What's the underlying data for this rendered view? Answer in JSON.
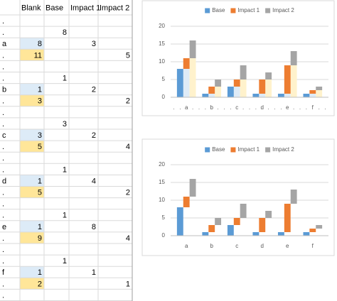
{
  "table": {
    "header": [
      null,
      "Blank",
      "Base",
      "Impact 1",
      "Impact 2"
    ],
    "rows": [
      [
        ".",
        null,
        null,
        null,
        null
      ],
      [
        ".",
        null,
        8,
        null,
        null
      ],
      [
        "a",
        8,
        null,
        3,
        null
      ],
      [
        ".",
        11,
        null,
        null,
        5
      ],
      [
        ".",
        null,
        null,
        null,
        null
      ],
      [
        ".",
        null,
        1,
        null,
        null
      ],
      [
        "b",
        1,
        null,
        2,
        null
      ],
      [
        ".",
        3,
        null,
        null,
        2
      ],
      [
        ".",
        null,
        null,
        null,
        null
      ],
      [
        ".",
        null,
        3,
        null,
        null
      ],
      [
        "c",
        3,
        null,
        2,
        null
      ],
      [
        ".",
        5,
        null,
        null,
        4
      ],
      [
        ".",
        null,
        null,
        null,
        null
      ],
      [
        ".",
        null,
        1,
        null,
        null
      ],
      [
        "d",
        1,
        null,
        4,
        null
      ],
      [
        ".",
        5,
        null,
        null,
        2
      ],
      [
        ".",
        null,
        null,
        null,
        null
      ],
      [
        ".",
        null,
        1,
        null,
        null
      ],
      [
        "e",
        1,
        null,
        8,
        null
      ],
      [
        ".",
        9,
        null,
        null,
        4
      ],
      [
        ".",
        null,
        null,
        null,
        null
      ],
      [
        ".",
        null,
        1,
        null,
        null
      ],
      [
        "f",
        1,
        null,
        1,
        null
      ],
      [
        ".",
        2,
        null,
        null,
        1
      ],
      [
        ".",
        null,
        null,
        null,
        null
      ]
    ]
  },
  "chart_data": [
    {
      "type": "stacked-bar",
      "categories": [
        ".",
        ".",
        "a",
        ".",
        ".",
        ".",
        "b",
        ".",
        ".",
        ".",
        "c",
        ".",
        ".",
        ".",
        "d",
        ".",
        ".",
        ".",
        "e",
        ".",
        ".",
        ".",
        "f",
        ".",
        "."
      ],
      "ylim": [
        0,
        20
      ],
      "yticks": [
        0,
        5,
        10,
        15,
        20
      ],
      "grid": true,
      "legend": "top",
      "series": [
        {
          "name": "Blank",
          "in_legend": false,
          "colors": [
            null,
            null,
            "#deebf7",
            "#fff2cc",
            null,
            null,
            "#deebf7",
            "#fff2cc",
            null,
            null,
            "#deebf7",
            "#fff2cc",
            null,
            null,
            "#deebf7",
            "#fff2cc",
            null,
            null,
            "#deebf7",
            "#fff2cc",
            null,
            null,
            "#deebf7",
            "#fff2cc",
            null
          ],
          "values": [
            null,
            null,
            8,
            11,
            null,
            null,
            1,
            3,
            null,
            null,
            3,
            5,
            null,
            null,
            1,
            5,
            null,
            null,
            1,
            9,
            null,
            null,
            1,
            2,
            null
          ]
        },
        {
          "name": "Base",
          "color": "#5b9bd5",
          "values": [
            null,
            8,
            null,
            null,
            null,
            1,
            null,
            null,
            null,
            3,
            null,
            null,
            null,
            1,
            null,
            null,
            null,
            1,
            null,
            null,
            null,
            1,
            null,
            null,
            null
          ]
        },
        {
          "name": "Impact 1",
          "color": "#ed7d31",
          "values": [
            null,
            null,
            3,
            null,
            null,
            null,
            2,
            null,
            null,
            null,
            2,
            null,
            null,
            null,
            4,
            null,
            null,
            null,
            8,
            null,
            null,
            null,
            1,
            null,
            null
          ]
        },
        {
          "name": "Impact 2",
          "color": "#a5a5a5",
          "values": [
            null,
            null,
            null,
            5,
            null,
            null,
            null,
            2,
            null,
            null,
            null,
            4,
            null,
            null,
            null,
            2,
            null,
            null,
            null,
            4,
            null,
            null,
            null,
            1,
            null
          ]
        }
      ]
    },
    {
      "type": "stacked-bar",
      "categories": [
        null,
        null,
        "a",
        null,
        null,
        null,
        "b",
        null,
        null,
        null,
        "c",
        null,
        null,
        null,
        "d",
        null,
        null,
        null,
        "e",
        null,
        null,
        null,
        "f",
        null,
        null
      ],
      "ylim": [
        0,
        20
      ],
      "yticks": [
        0,
        5,
        10,
        15,
        20
      ],
      "grid": true,
      "legend": "top",
      "series": [
        {
          "name": "Blank",
          "in_legend": false,
          "color": null,
          "values": [
            null,
            null,
            8,
            11,
            null,
            null,
            1,
            3,
            null,
            null,
            3,
            5,
            null,
            null,
            1,
            5,
            null,
            null,
            1,
            9,
            null,
            null,
            1,
            2,
            null
          ]
        },
        {
          "name": "Base",
          "color": "#5b9bd5",
          "values": [
            null,
            8,
            null,
            null,
            null,
            1,
            null,
            null,
            null,
            3,
            null,
            null,
            null,
            1,
            null,
            null,
            null,
            1,
            null,
            null,
            null,
            1,
            null,
            null,
            null
          ]
        },
        {
          "name": "Impact 1",
          "color": "#ed7d31",
          "values": [
            null,
            null,
            3,
            null,
            null,
            null,
            2,
            null,
            null,
            null,
            2,
            null,
            null,
            null,
            4,
            null,
            null,
            null,
            8,
            null,
            null,
            null,
            1,
            null,
            null
          ]
        },
        {
          "name": "Impact 2",
          "color": "#a5a5a5",
          "values": [
            null,
            null,
            null,
            5,
            null,
            null,
            null,
            2,
            null,
            null,
            null,
            4,
            null,
            null,
            null,
            2,
            null,
            null,
            null,
            4,
            null,
            null,
            null,
            1,
            null
          ]
        }
      ]
    }
  ]
}
